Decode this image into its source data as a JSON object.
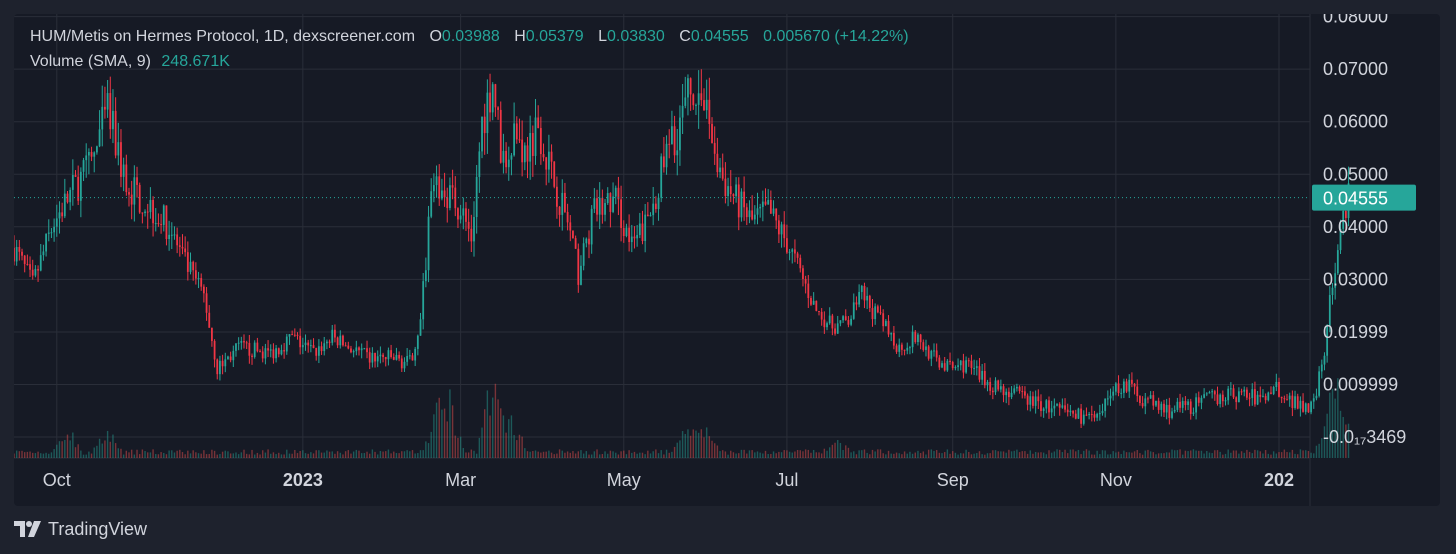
{
  "legend": {
    "symbol": "HUM/Metis on Hermes Protocol, 1D, dexscreener.com",
    "o_label": "O",
    "o_value": "0.03988",
    "h_label": "H",
    "h_value": "0.05379",
    "l_label": "L",
    "l_value": "0.03830",
    "c_label": "C",
    "c_value": "0.04555",
    "change": "0.005670 (+14.22%)",
    "volume_label": "Volume (SMA, 9)",
    "volume_value": "248.671K"
  },
  "footer": {
    "brand": "TradingView"
  },
  "colors": {
    "up": "#26a69a",
    "down": "#ef5350",
    "down_body": "#f23645",
    "grid": "#2a2e39",
    "text": "#d1d4dc",
    "background": "#161a25"
  },
  "chart_data": {
    "type": "candlestick",
    "price_axis": {
      "ticks": [
        0.08,
        0.07,
        0.06,
        0.05,
        0.04,
        0.03,
        0.01999,
        0.009999,
        0.0
      ],
      "tick_labels": [
        "0.08000",
        "0.07000",
        "0.06000",
        "0.05000",
        "0.04000",
        "0.03000",
        "0.01999",
        "0.009999",
        "-0.0₁₇3469"
      ],
      "current_price": 0.04555,
      "current_price_label": "0.04555",
      "ylim": [
        -0.004,
        0.0805
      ]
    },
    "time_axis": {
      "start": "2022-09-15",
      "end": "2024-01-01",
      "ticks": [
        {
          "date": "2022-10-01",
          "label": "Oct",
          "bold": false
        },
        {
          "date": "2023-01-01",
          "label": "2023",
          "bold": true
        },
        {
          "date": "2023-03-01",
          "label": "Mar",
          "bold": false
        },
        {
          "date": "2023-05-01",
          "label": "May",
          "bold": false
        },
        {
          "date": "2023-07-01",
          "label": "Jul",
          "bold": false
        },
        {
          "date": "2023-09-01",
          "label": "Sep",
          "bold": false
        },
        {
          "date": "2023-11-01",
          "label": "Nov",
          "bold": false
        },
        {
          "date": "2024-01-01",
          "label": "202",
          "bold": true
        }
      ]
    },
    "close_path": [
      [
        "2022-09-15",
        0.036
      ],
      [
        "2022-09-22",
        0.029
      ],
      [
        "2022-09-30",
        0.041
      ],
      [
        "2022-10-07",
        0.047
      ],
      [
        "2022-10-14",
        0.052
      ],
      [
        "2022-10-20",
        0.062
      ],
      [
        "2022-10-27",
        0.048
      ],
      [
        "2022-11-05",
        0.044
      ],
      [
        "2022-11-12",
        0.04
      ],
      [
        "2022-11-18",
        0.033
      ],
      [
        "2022-11-25",
        0.027
      ],
      [
        "2022-11-30",
        0.013
      ],
      [
        "2022-12-08",
        0.017
      ],
      [
        "2022-12-20",
        0.016
      ],
      [
        "2022-12-28",
        0.019
      ],
      [
        "2023-01-05",
        0.016
      ],
      [
        "2023-01-12",
        0.019
      ],
      [
        "2023-01-25",
        0.015
      ],
      [
        "2023-02-03",
        0.015
      ],
      [
        "2023-02-10",
        0.014
      ],
      [
        "2023-02-14",
        0.022
      ],
      [
        "2023-02-18",
        0.046
      ],
      [
        "2023-02-25",
        0.047
      ],
      [
        "2023-03-02",
        0.042
      ],
      [
        "2023-03-05",
        0.038
      ],
      [
        "2023-03-09",
        0.06
      ],
      [
        "2023-03-13",
        0.068
      ],
      [
        "2023-03-17",
        0.051
      ],
      [
        "2023-03-21",
        0.059
      ],
      [
        "2023-03-25",
        0.054
      ],
      [
        "2023-03-30",
        0.06
      ],
      [
        "2023-04-04",
        0.05
      ],
      [
        "2023-04-10",
        0.041
      ],
      [
        "2023-04-14",
        0.031
      ],
      [
        "2023-04-20",
        0.043
      ],
      [
        "2023-04-28",
        0.045
      ],
      [
        "2023-05-04",
        0.036
      ],
      [
        "2023-05-10",
        0.041
      ],
      [
        "2023-05-16",
        0.052
      ],
      [
        "2023-05-22",
        0.06
      ],
      [
        "2023-05-27",
        0.067
      ],
      [
        "2023-06-01",
        0.062
      ],
      [
        "2023-06-06",
        0.05
      ],
      [
        "2023-06-12",
        0.045
      ],
      [
        "2023-06-18",
        0.041
      ],
      [
        "2023-06-24",
        0.043
      ],
      [
        "2023-07-01",
        0.037
      ],
      [
        "2023-07-07",
        0.03
      ],
      [
        "2023-07-12",
        0.024
      ],
      [
        "2023-07-18",
        0.021
      ],
      [
        "2023-07-24",
        0.022
      ],
      [
        "2023-07-29",
        0.027
      ],
      [
        "2023-08-05",
        0.022
      ],
      [
        "2023-08-12",
        0.017
      ],
      [
        "2023-08-18",
        0.019
      ],
      [
        "2023-08-25",
        0.015
      ],
      [
        "2023-08-31",
        0.013
      ],
      [
        "2023-09-06",
        0.014
      ],
      [
        "2023-09-12",
        0.011
      ],
      [
        "2023-09-20",
        0.009
      ],
      [
        "2023-09-30",
        0.007
      ],
      [
        "2023-10-10",
        0.005
      ],
      [
        "2023-10-20",
        0.004
      ],
      [
        "2023-10-26",
        0.003
      ],
      [
        "2023-10-30",
        0.009
      ],
      [
        "2023-11-05",
        0.01
      ],
      [
        "2023-11-12",
        0.007
      ],
      [
        "2023-11-20",
        0.005
      ],
      [
        "2023-11-30",
        0.006
      ],
      [
        "2023-12-10",
        0.008
      ],
      [
        "2023-12-20",
        0.008
      ],
      [
        "2023-12-26",
        0.007
      ],
      [
        "2023-12-30",
        0.01
      ],
      [
        "2024-01-05",
        0.007
      ],
      [
        "2024-01-12",
        0.006
      ],
      [
        "2024-01-15",
        0.009
      ],
      [
        "2024-01-18",
        0.017
      ],
      [
        "2024-01-21",
        0.03
      ],
      [
        "2024-01-24",
        0.04
      ],
      [
        "2024-01-27",
        0.04555
      ]
    ],
    "volume_spikes": [
      [
        "2022-10-05",
        0.25
      ],
      [
        "2022-10-20",
        0.22
      ],
      [
        "2023-02-20",
        0.45
      ],
      [
        "2023-02-25",
        0.55
      ],
      [
        "2023-03-13",
        0.85
      ],
      [
        "2023-03-20",
        0.4
      ],
      [
        "2023-05-25",
        0.3
      ],
      [
        "2023-06-01",
        0.25
      ],
      [
        "2023-07-20",
        0.12
      ],
      [
        "2024-01-20",
        0.45
      ],
      [
        "2024-01-24",
        0.55
      ]
    ]
  }
}
